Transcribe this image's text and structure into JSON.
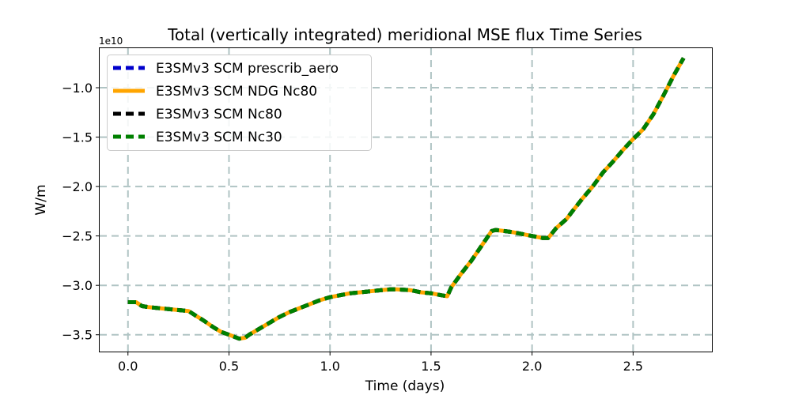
{
  "chart_data": {
    "type": "line",
    "title": "Total (vertically integrated) meridional MSE flux Time Series",
    "xlabel": "Time (days)",
    "ylabel": "W/m",
    "y_offset_label": "1e10",
    "xlim": [
      -0.14,
      2.89
    ],
    "ylim": [
      -3.67,
      -0.6
    ],
    "xticks": [
      0.0,
      0.5,
      1.0,
      1.5,
      2.0,
      2.5
    ],
    "xtick_labels": [
      "0.0",
      "0.5",
      "1.0",
      "1.5",
      "2.0",
      "2.5"
    ],
    "yticks": [
      -3.5,
      -3.0,
      -2.5,
      -2.0,
      -1.5,
      -1.0
    ],
    "ytick_labels": [
      "−3.5",
      "−3.0",
      "−2.5",
      "−2.0",
      "−1.5",
      "−1.0"
    ],
    "grid": true,
    "legend_position": "upper-left",
    "x": [
      0.0,
      0.04,
      0.07,
      0.1,
      0.15,
      0.2,
      0.25,
      0.3,
      0.33,
      0.37,
      0.42,
      0.46,
      0.5,
      0.55,
      0.58,
      0.6,
      0.65,
      0.7,
      0.75,
      0.8,
      0.85,
      0.9,
      0.95,
      1.0,
      1.05,
      1.1,
      1.15,
      1.2,
      1.25,
      1.3,
      1.33,
      1.4,
      1.45,
      1.5,
      1.55,
      1.58,
      1.6,
      1.65,
      1.7,
      1.75,
      1.8,
      1.82,
      1.9,
      1.95,
      2.0,
      2.05,
      2.08,
      2.12,
      2.17,
      2.2,
      2.25,
      2.3,
      2.35,
      2.4,
      2.45,
      2.5,
      2.55,
      2.6,
      2.65,
      2.7,
      2.75
    ],
    "series": [
      {
        "name": "E3SMv3 SCM prescrib_aero",
        "color": "#0000cc",
        "style": "dashed",
        "values": [
          -3.17,
          -3.17,
          -3.21,
          -3.22,
          -3.23,
          -3.24,
          -3.25,
          -3.26,
          -3.3,
          -3.35,
          -3.42,
          -3.47,
          -3.5,
          -3.54,
          -3.53,
          -3.5,
          -3.44,
          -3.38,
          -3.32,
          -3.27,
          -3.23,
          -3.19,
          -3.15,
          -3.12,
          -3.1,
          -3.08,
          -3.07,
          -3.06,
          -3.05,
          -3.04,
          -3.04,
          -3.05,
          -3.07,
          -3.08,
          -3.1,
          -3.11,
          -3.02,
          -2.88,
          -2.75,
          -2.6,
          -2.45,
          -2.44,
          -2.46,
          -2.48,
          -2.5,
          -2.52,
          -2.52,
          -2.42,
          -2.33,
          -2.25,
          -2.12,
          -2.0,
          -1.86,
          -1.75,
          -1.63,
          -1.52,
          -1.42,
          -1.27,
          -1.08,
          -0.88,
          -0.7
        ]
      },
      {
        "name": "E3SMv3 SCM NDG Nc80",
        "color": "#ffa500",
        "style": "solid",
        "values": [
          -3.17,
          -3.17,
          -3.21,
          -3.22,
          -3.23,
          -3.24,
          -3.25,
          -3.26,
          -3.3,
          -3.35,
          -3.42,
          -3.47,
          -3.5,
          -3.54,
          -3.53,
          -3.5,
          -3.44,
          -3.38,
          -3.32,
          -3.27,
          -3.23,
          -3.19,
          -3.15,
          -3.12,
          -3.1,
          -3.08,
          -3.07,
          -3.06,
          -3.05,
          -3.04,
          -3.04,
          -3.05,
          -3.07,
          -3.08,
          -3.1,
          -3.11,
          -3.02,
          -2.88,
          -2.75,
          -2.6,
          -2.45,
          -2.44,
          -2.46,
          -2.48,
          -2.5,
          -2.52,
          -2.52,
          -2.42,
          -2.33,
          -2.25,
          -2.12,
          -2.0,
          -1.86,
          -1.75,
          -1.63,
          -1.52,
          -1.42,
          -1.27,
          -1.08,
          -0.88,
          -0.7
        ]
      },
      {
        "name": "E3SMv3 SCM Nc80",
        "color": "#000000",
        "style": "dashed",
        "values": [
          -3.17,
          -3.17,
          -3.21,
          -3.22,
          -3.23,
          -3.24,
          -3.25,
          -3.26,
          -3.3,
          -3.35,
          -3.42,
          -3.47,
          -3.5,
          -3.54,
          -3.53,
          -3.5,
          -3.44,
          -3.38,
          -3.32,
          -3.27,
          -3.23,
          -3.19,
          -3.15,
          -3.12,
          -3.1,
          -3.08,
          -3.07,
          -3.06,
          -3.05,
          -3.04,
          -3.04,
          -3.05,
          -3.07,
          -3.08,
          -3.1,
          -3.11,
          -3.02,
          -2.88,
          -2.75,
          -2.6,
          -2.45,
          -2.44,
          -2.46,
          -2.48,
          -2.5,
          -2.52,
          -2.52,
          -2.42,
          -2.33,
          -2.25,
          -2.12,
          -2.0,
          -1.86,
          -1.75,
          -1.63,
          -1.52,
          -1.42,
          -1.27,
          -1.08,
          -0.88,
          -0.7
        ]
      },
      {
        "name": "E3SMv3 SCM Nc30",
        "color": "#008000",
        "style": "dashed",
        "values": [
          -3.17,
          -3.17,
          -3.21,
          -3.22,
          -3.23,
          -3.24,
          -3.25,
          -3.26,
          -3.3,
          -3.35,
          -3.42,
          -3.47,
          -3.5,
          -3.54,
          -3.53,
          -3.5,
          -3.44,
          -3.38,
          -3.32,
          -3.27,
          -3.23,
          -3.19,
          -3.15,
          -3.12,
          -3.1,
          -3.08,
          -3.07,
          -3.06,
          -3.05,
          -3.04,
          -3.04,
          -3.05,
          -3.07,
          -3.08,
          -3.1,
          -3.11,
          -3.02,
          -2.88,
          -2.75,
          -2.6,
          -2.45,
          -2.44,
          -2.46,
          -2.48,
          -2.5,
          -2.52,
          -2.52,
          -2.42,
          -2.33,
          -2.25,
          -2.12,
          -2.0,
          -1.86,
          -1.75,
          -1.63,
          -1.52,
          -1.42,
          -1.27,
          -1.08,
          -0.88,
          -0.7
        ]
      }
    ]
  }
}
